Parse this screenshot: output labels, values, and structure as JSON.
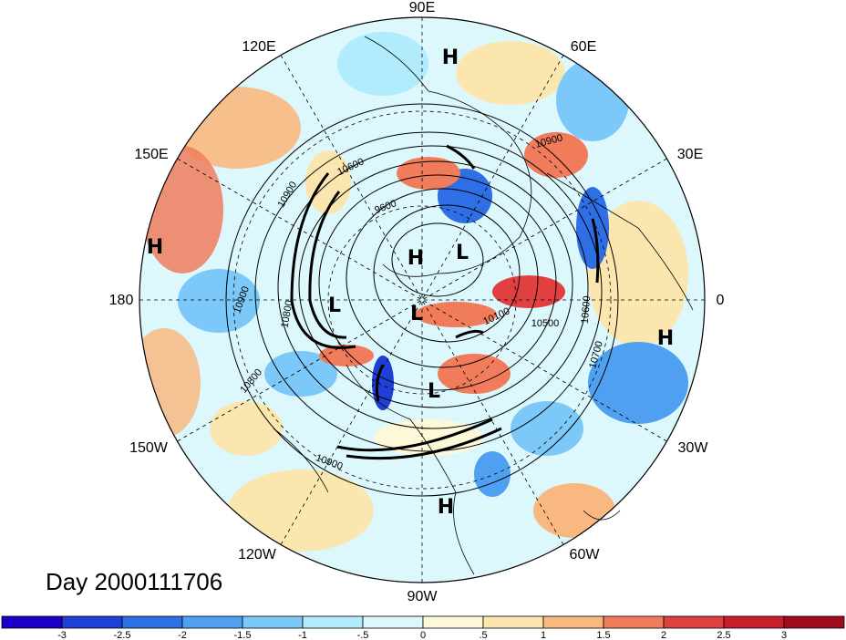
{
  "title": "Day 2000111706",
  "longitude_labels": [
    "90E",
    "60E",
    "30E",
    "0",
    "30W",
    "60W",
    "90W",
    "120W",
    "150W",
    "180",
    "150E",
    "120E"
  ],
  "pressure_centers": [
    {
      "id": "h-pacific-west",
      "text": "H"
    },
    {
      "id": "h-asia-north",
      "text": "H"
    },
    {
      "id": "h-arctic",
      "text": "H"
    },
    {
      "id": "l-siberia",
      "text": "L"
    },
    {
      "id": "l-bering",
      "text": "L"
    },
    {
      "id": "l-canada-north",
      "text": "L"
    },
    {
      "id": "l-hudson",
      "text": "L"
    },
    {
      "id": "h-atlantic",
      "text": "H"
    },
    {
      "id": "h-caribbean",
      "text": "H"
    }
  ],
  "contour_labels": [
    "10900",
    "10600",
    "10900",
    "9600",
    "10900",
    "10100",
    "10500",
    "10600",
    "10700",
    "10800",
    "10800",
    "10900"
  ],
  "colorbar": {
    "ticks": [
      "-3",
      "-2.5",
      "-2",
      "-1.5",
      "-1",
      "-.5",
      "0",
      ".5",
      "1",
      "1.5",
      "2",
      "2.5",
      "3"
    ],
    "colors": [
      "#1b00c8",
      "#1f3fd6",
      "#2e6fe6",
      "#4fa0f0",
      "#7cc8f8",
      "#b0ecfc",
      "#dcf8fc",
      "#fcf8d8",
      "#fce6b0",
      "#f8b880",
      "#f07c5c",
      "#e04040",
      "#c81e28",
      "#a00c1e"
    ]
  }
}
